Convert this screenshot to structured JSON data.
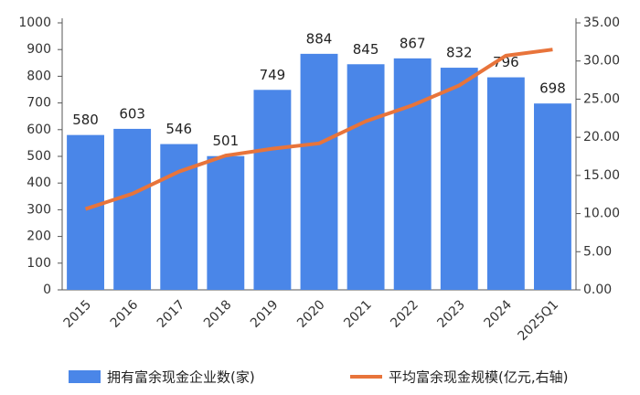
{
  "chart_data": {
    "type": "bar",
    "categories": [
      "2015",
      "2016",
      "2017",
      "2018",
      "2019",
      "2020",
      "2021",
      "2022",
      "2023",
      "2024",
      "2025Q1"
    ],
    "series": [
      {
        "name": "拥有富余现金企业数(家)",
        "type": "bar",
        "color": "#4a86e8",
        "values": [
          580,
          603,
          546,
          501,
          749,
          884,
          845,
          867,
          832,
          796,
          698
        ]
      },
      {
        "name": "平均富余现金规模(亿元,右轴)",
        "type": "line",
        "axis": "y2",
        "color": "#e8743b",
        "values": [
          10.6,
          12.6,
          15.5,
          17.6,
          18.5,
          19.2,
          22.1,
          24.2,
          26.8,
          30.7,
          31.5
        ]
      }
    ],
    "ylim": [
      0,
      1000
    ],
    "yticks": [
      0,
      100,
      200,
      300,
      400,
      500,
      600,
      700,
      800,
      900,
      1000
    ],
    "y2lim": [
      0,
      35
    ],
    "y2ticks": [
      {
        "value": 0,
        "label": "0.00"
      },
      {
        "value": 5,
        "label": "5.00"
      },
      {
        "value": 10,
        "label": "10.00"
      },
      {
        "value": 15,
        "label": "15.00"
      },
      {
        "value": 20,
        "label": "20.00"
      },
      {
        "value": 25,
        "label": "25.00"
      },
      {
        "value": 30,
        "label": "30.00"
      },
      {
        "value": 35,
        "label": "35.00"
      }
    ]
  }
}
